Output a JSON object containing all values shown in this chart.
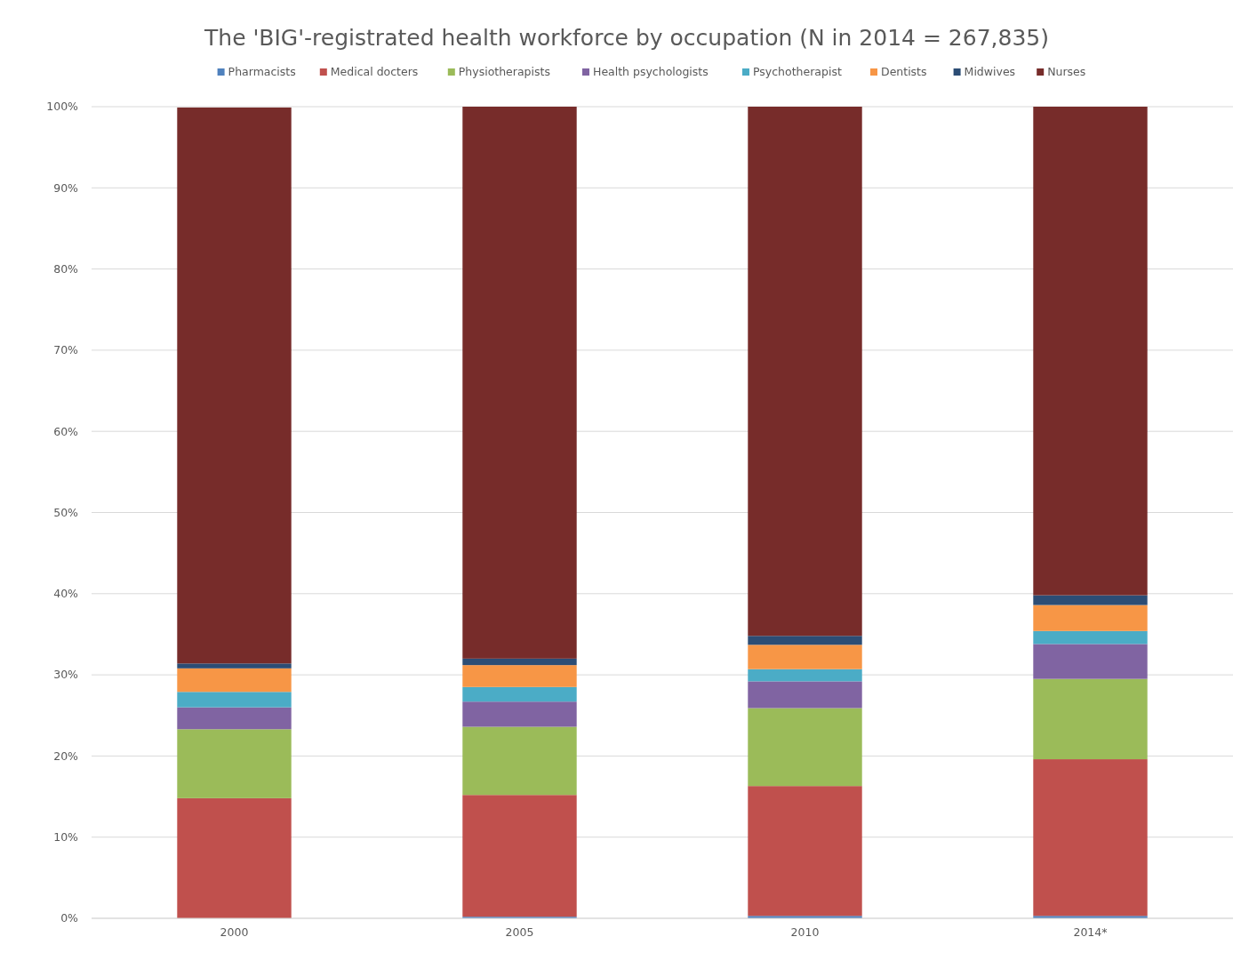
{
  "chart_data": {
    "type": "bar",
    "title": "The 'BIG'-registrated health workforce by occupation (N in 2014 = 267,835)",
    "categories": [
      "2000",
      "2005",
      "2010",
      "2014*"
    ],
    "stacked": true,
    "legend": "top",
    "grid": "y",
    "ylim": [
      0,
      100
    ],
    "yticks": [
      {
        "value": 0,
        "label": "0%"
      },
      {
        "value": 10,
        "label": "10%"
      },
      {
        "value": 20,
        "label": "20%"
      },
      {
        "value": 30,
        "label": "30%"
      },
      {
        "value": 40,
        "label": "40%"
      },
      {
        "value": 50,
        "label": "50%"
      },
      {
        "value": 60,
        "label": "60%"
      },
      {
        "value": 70,
        "label": "70%"
      },
      {
        "value": 80,
        "label": "80%"
      },
      {
        "value": 90,
        "label": "90%"
      },
      {
        "value": 100,
        "label": "100%"
      }
    ],
    "series": [
      {
        "name": "Pharmacists",
        "color": "#4f81bd",
        "values": [
          null,
          0.2,
          0.3,
          0.3
        ]
      },
      {
        "name": "Medical docters",
        "color": "#c0504d",
        "values": [
          14.8,
          15.0,
          16.0,
          19.3
        ]
      },
      {
        "name": "Physiotherapists",
        "color": "#9bbb59",
        "values": [
          8.5,
          8.4,
          9.6,
          9.9
        ]
      },
      {
        "name": "Health psychologists",
        "color": "#8064a2",
        "values": [
          2.7,
          3.1,
          3.3,
          4.3
        ]
      },
      {
        "name": "Psychotherapist",
        "color": "#4bacc6",
        "values": [
          1.9,
          1.8,
          1.5,
          1.6
        ]
      },
      {
        "name": "Dentists",
        "color": "#f79646",
        "values": [
          2.9,
          2.7,
          3.0,
          3.2
        ]
      },
      {
        "name": "Midwives",
        "color": "#2c4d75",
        "values": [
          0.6,
          0.8,
          1.1,
          1.2
        ]
      },
      {
        "name": "Nurses",
        "color": "#772c2a",
        "values": [
          68.5,
          68.0,
          65.2,
          60.2
        ]
      }
    ]
  }
}
